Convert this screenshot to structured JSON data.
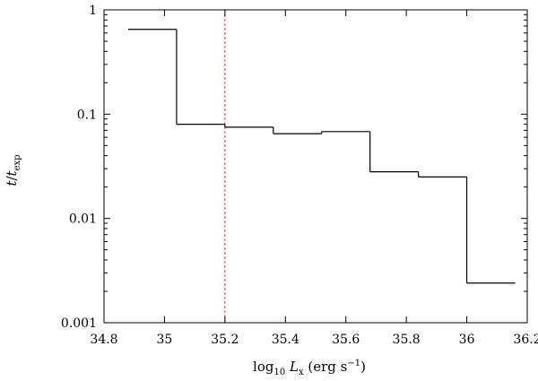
{
  "chart_data": {
    "type": "line",
    "style": "step",
    "x_label": {
      "main": "log",
      "main_sub": "10",
      "var": "L",
      "var_sub": "x",
      "unit": "(erg s",
      "unit_sup": "−1",
      "unit_end": ")"
    },
    "y_label": {
      "var": "t",
      "slash": "/",
      "var2": "t",
      "var2_sub": "exp"
    },
    "x_scale": "linear",
    "y_scale": "log",
    "xlim": [
      34.8,
      36.2
    ],
    "ylim": [
      0.001,
      1
    ],
    "x_ticks": [
      {
        "value": 34.8,
        "label": "34.8"
      },
      {
        "value": 35.0,
        "label": "35"
      },
      {
        "value": 35.2,
        "label": "35.2"
      },
      {
        "value": 35.4,
        "label": "35.4"
      },
      {
        "value": 35.6,
        "label": "35.6"
      },
      {
        "value": 35.8,
        "label": "35.8"
      },
      {
        "value": 36.0,
        "label": "36"
      },
      {
        "value": 36.2,
        "label": "36.2"
      }
    ],
    "y_ticks": [
      {
        "value": 0.001,
        "label": "0.001"
      },
      {
        "value": 0.01,
        "label": "0.01"
      },
      {
        "value": 0.1,
        "label": "0.1"
      },
      {
        "value": 1,
        "label": "1"
      }
    ],
    "grid": false,
    "series": [
      {
        "color": "#000000",
        "bins": [
          {
            "x0": 34.88,
            "x1": 35.04,
            "y": 0.65
          },
          {
            "x0": 35.04,
            "x1": 35.2,
            "y": 0.08
          },
          {
            "x0": 35.2,
            "x1": 35.36,
            "y": 0.075
          },
          {
            "x0": 35.36,
            "x1": 35.52,
            "y": 0.065
          },
          {
            "x0": 35.52,
            "x1": 35.68,
            "y": 0.068
          },
          {
            "x0": 35.68,
            "x1": 35.84,
            "y": 0.028
          },
          {
            "x0": 35.84,
            "x1": 36.0,
            "y": 0.025
          },
          {
            "x0": 36.0,
            "x1": 36.16,
            "y": 0.0024
          }
        ]
      }
    ],
    "vertical_line": {
      "x": 35.2,
      "color": "#e8413b",
      "style": "dashed"
    }
  }
}
